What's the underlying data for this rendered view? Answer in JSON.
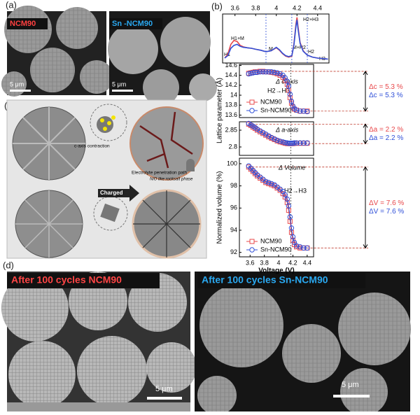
{
  "panel_labels": {
    "a": "(a)",
    "b": "(b)",
    "c": "(c)",
    "d": "(d)"
  },
  "sem_a": {
    "left_label": "NCM90",
    "right_label": "Sn -NCM90",
    "left_scale": "5 μm",
    "right_scale": "5 μm"
  },
  "schematic": {
    "c_axis": "c-axis contraction",
    "electrolyte": "Electrolyte penetration path",
    "nio": "NiO like rocksalt phase",
    "charged": "Charged"
  },
  "sem_d": {
    "left_label": "After 100 cycles NCM90",
    "right_label": "After 100 cycles Sn-NCM90",
    "left_scale": "5 μm",
    "right_scale": "5 μm"
  },
  "chart_data": [
    {
      "type": "line",
      "xlim": [
        3.48,
        4.51
      ],
      "ylim": [
        0,
        10
      ],
      "xticks": [
        3.6,
        3.8,
        4.0,
        4.2,
        4.4
      ],
      "xaxis": "top",
      "vlines": [
        3.9,
        4.15,
        4.3
      ],
      "annotations": [
        "H1",
        "H1+M",
        "M",
        "M+H2",
        "H2",
        "H2+H3",
        "H3"
      ],
      "x": [
        3.5,
        3.53,
        3.56,
        3.59,
        3.62,
        3.65,
        3.68,
        3.72,
        3.76,
        3.8,
        3.85,
        3.9,
        3.95,
        4.0,
        4.03,
        4.06,
        4.09,
        4.12,
        4.15,
        4.17,
        4.19,
        4.2,
        4.21,
        4.23,
        4.26,
        4.3,
        4.35,
        4.4,
        4.45,
        4.5
      ],
      "series": [
        {
          "color": "#e8474a",
          "values": [
            1.0,
            1.8,
            3.8,
            4.6,
            4.4,
            3.6,
            3.3,
            3.1,
            3.0,
            2.8,
            2.6,
            2.3,
            2.5,
            3.1,
            2.6,
            1.9,
            1.4,
            1.2,
            1.4,
            3.8,
            8.0,
            9.3,
            7.5,
            4.2,
            2.5,
            1.6,
            1.2,
            1.0,
            0.9,
            0.8
          ]
        },
        {
          "color": "#3050d8",
          "values": [
            1.0,
            1.5,
            3.0,
            3.6,
            3.8,
            3.4,
            3.2,
            3.1,
            3.0,
            2.8,
            2.6,
            2.3,
            2.5,
            3.2,
            2.7,
            2.0,
            1.5,
            1.3,
            1.5,
            3.5,
            7.5,
            8.8,
            7.0,
            4.0,
            2.4,
            1.6,
            1.2,
            1.0,
            0.9,
            0.8
          ]
        }
      ]
    },
    {
      "type": "line",
      "xlim": [
        3.45,
        4.49
      ],
      "ylim": [
        13.55,
        14.62
      ],
      "yticks": [
        13.6,
        13.8,
        14.0,
        14.2,
        14.4,
        14.6
      ],
      "ylabel": "Lattice parameter (Å)",
      "legend": "lower left",
      "vlines": [
        4.17
      ],
      "annotations": [
        "Δ c-axis",
        "H2→H3"
      ],
      "delta_labels": [
        {
          "text": "Δc = 5.3 %",
          "color": "#e8474a"
        },
        {
          "text": "Δc = 5.3 %",
          "color": "#3050d8"
        }
      ],
      "x": [
        3.58,
        3.61,
        3.64,
        3.67,
        3.7,
        3.74,
        3.78,
        3.82,
        3.86,
        3.9,
        3.94,
        3.98,
        4.02,
        4.06,
        4.09,
        4.12,
        4.14,
        4.16,
        4.18,
        4.2,
        4.22,
        4.25,
        4.3,
        4.35,
        4.4
      ],
      "series": [
        {
          "name": "NCM90",
          "color": "#e8474a",
          "marker": "square",
          "values": [
            14.44,
            14.45,
            14.46,
            14.47,
            14.47,
            14.48,
            14.48,
            14.47,
            14.47,
            14.46,
            14.45,
            14.43,
            14.4,
            14.36,
            14.3,
            14.22,
            14.1,
            13.95,
            13.84,
            13.76,
            13.72,
            13.7,
            13.68,
            13.68,
            13.68
          ]
        },
        {
          "name": "Sn-NCM90",
          "color": "#3050d8",
          "marker": "circle",
          "values": [
            14.43,
            14.44,
            14.45,
            14.46,
            14.46,
            14.47,
            14.47,
            14.47,
            14.47,
            14.47,
            14.46,
            14.45,
            14.43,
            14.4,
            14.35,
            14.28,
            14.18,
            14.02,
            13.88,
            13.78,
            13.73,
            13.7,
            13.68,
            13.68,
            13.67
          ]
        }
      ]
    },
    {
      "type": "line",
      "xlim": [
        3.45,
        4.49
      ],
      "ylim": [
        2.775,
        2.875
      ],
      "yticks": [
        2.8,
        2.85
      ],
      "vlines": [
        4.17
      ],
      "annotations": [
        "Δ a-axis"
      ],
      "delta_labels": [
        {
          "text": "Δa = 2.2 %",
          "color": "#e8474a"
        },
        {
          "text": "Δa = 2.2 %",
          "color": "#3050d8"
        }
      ],
      "x": [
        3.58,
        3.61,
        3.64,
        3.67,
        3.7,
        3.74,
        3.78,
        3.82,
        3.86,
        3.9,
        3.94,
        3.98,
        4.02,
        4.06,
        4.09,
        4.12,
        4.14,
        4.16,
        4.18,
        4.2,
        4.22,
        4.25,
        4.3,
        4.35,
        4.4
      ],
      "series": [
        {
          "color": "#e8474a",
          "marker": "square",
          "values": [
            2.868,
            2.864,
            2.859,
            2.855,
            2.85,
            2.845,
            2.84,
            2.835,
            2.83,
            2.826,
            2.822,
            2.818,
            2.815,
            2.813,
            2.811,
            2.81,
            2.81,
            2.81,
            2.81,
            2.81,
            2.811,
            2.811,
            2.811,
            2.811,
            2.811
          ]
        },
        {
          "color": "#3050d8",
          "marker": "circle",
          "values": [
            2.87,
            2.866,
            2.862,
            2.858,
            2.853,
            2.848,
            2.843,
            2.838,
            2.833,
            2.828,
            2.824,
            2.82,
            2.817,
            2.815,
            2.813,
            2.812,
            2.811,
            2.811,
            2.811,
            2.811,
            2.812,
            2.812,
            2.812,
            2.812,
            2.812
          ]
        }
      ]
    },
    {
      "type": "line",
      "xlim": [
        3.45,
        4.49
      ],
      "ylim": [
        91.6,
        100.5
      ],
      "xticks": [
        3.6,
        3.8,
        4.0,
        4.2,
        4.4
      ],
      "xaxis": "bottom",
      "yticks": [
        92,
        94,
        96,
        98,
        100
      ],
      "xlabel": "Voltage (V)",
      "ylabel": "Normalized volume (%)",
      "legend": "lower left",
      "vlines": [
        4.17
      ],
      "annotations": [
        "Δ Volume",
        "H2→H3"
      ],
      "delta_labels": [
        {
          "text": "ΔV = 7.6 %",
          "color": "#e8474a"
        },
        {
          "text": "ΔV = 7.6 %",
          "color": "#3050d8"
        }
      ],
      "x": [
        3.58,
        3.61,
        3.64,
        3.67,
        3.7,
        3.74,
        3.78,
        3.82,
        3.86,
        3.9,
        3.94,
        3.98,
        4.02,
        4.06,
        4.09,
        4.12,
        4.14,
        4.16,
        4.18,
        4.2,
        4.22,
        4.25,
        4.3,
        4.35,
        4.4
      ],
      "series": [
        {
          "name": "NCM90",
          "color": "#e8474a",
          "marker": "square",
          "values": [
            99.7,
            99.5,
            99.3,
            99.1,
            98.9,
            98.7,
            98.5,
            98.3,
            98.2,
            98.1,
            98.0,
            97.8,
            97.6,
            97.3,
            97.0,
            96.5,
            95.8,
            94.8,
            93.8,
            93.1,
            92.7,
            92.5,
            92.4,
            92.4,
            92.4
          ]
        },
        {
          "name": "Sn-NCM90",
          "color": "#3050d8",
          "marker": "circle",
          "values": [
            99.8,
            99.6,
            99.4,
            99.2,
            99.0,
            98.8,
            98.6,
            98.4,
            98.3,
            98.2,
            98.1,
            97.9,
            97.7,
            97.5,
            97.2,
            96.8,
            96.2,
            95.2,
            94.2,
            93.4,
            92.9,
            92.6,
            92.5,
            92.4,
            92.4
          ]
        }
      ]
    }
  ]
}
